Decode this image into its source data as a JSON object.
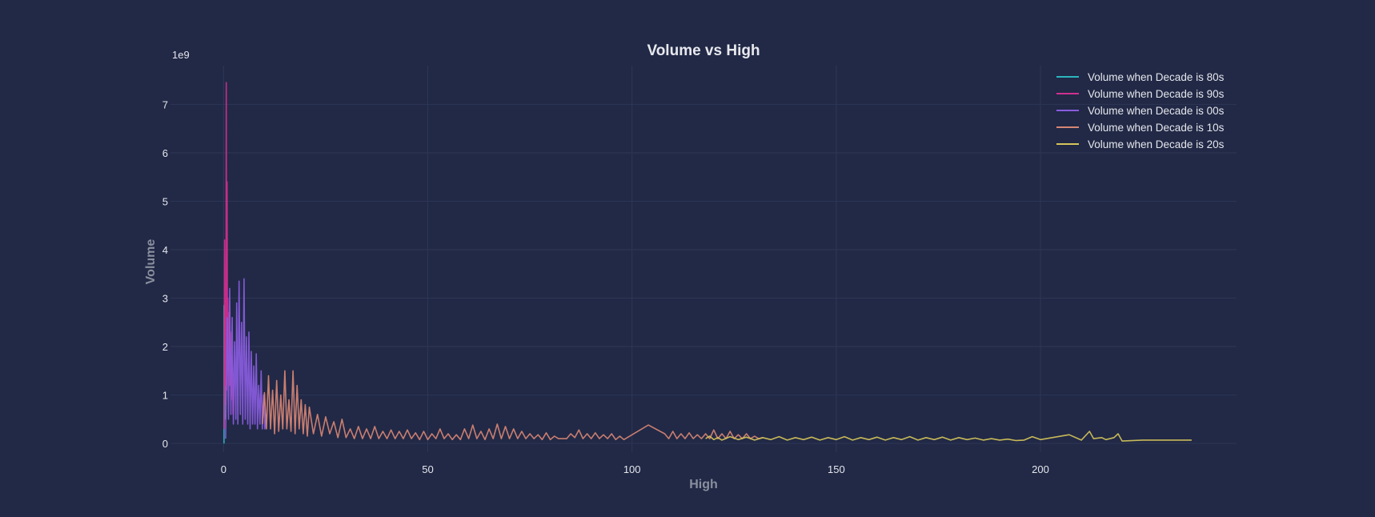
{
  "chart_data": {
    "type": "line",
    "title": "Volume vs High",
    "xlabel": "High",
    "ylabel": "Volume",
    "y_offset_label": "1e9",
    "xlim": [
      -13,
      248
    ],
    "ylim": [
      -0.18,
      7.8
    ],
    "x_ticks": [
      0,
      50,
      100,
      150,
      200
    ],
    "y_ticks": [
      0,
      1,
      2,
      3,
      4,
      5,
      6,
      7
    ],
    "grid": true,
    "legend_position": "top-right",
    "series": [
      {
        "name": "Volume when Decade is 80s",
        "color": "#2bb5bd",
        "points": [
          [
            0.1,
            0.0
          ],
          [
            0.12,
            2.85
          ],
          [
            0.14,
            0.4
          ],
          [
            0.16,
            2.2
          ],
          [
            0.18,
            0.6
          ],
          [
            0.2,
            1.9
          ],
          [
            0.22,
            0.8
          ],
          [
            0.25,
            2.6
          ],
          [
            0.28,
            0.5
          ],
          [
            0.3,
            1.4
          ]
        ]
      },
      {
        "name": "Volume when Decade is 90s",
        "color": "#d12f8f",
        "points": [
          [
            0.15,
            0.3
          ],
          [
            0.25,
            4.2
          ],
          [
            0.35,
            1.2
          ],
          [
            0.45,
            3.3
          ],
          [
            0.55,
            0.8
          ],
          [
            0.65,
            7.45
          ],
          [
            0.75,
            1.1
          ],
          [
            0.85,
            5.4
          ],
          [
            0.95,
            2.0
          ],
          [
            1.05,
            3.0
          ],
          [
            1.15,
            1.5
          ],
          [
            1.3,
            2.7
          ],
          [
            1.5,
            1.2
          ],
          [
            1.7,
            2.3
          ],
          [
            1.9,
            0.9
          ],
          [
            2.1,
            1.8
          ],
          [
            2.3,
            0.6
          ]
        ]
      },
      {
        "name": "Volume when Decade is 00s",
        "color": "#8a5ce0",
        "points": [
          [
            0.5,
            0.1
          ],
          [
            0.9,
            2.6
          ],
          [
            1.2,
            0.5
          ],
          [
            1.5,
            3.2
          ],
          [
            1.8,
            0.6
          ],
          [
            2.1,
            2.6
          ],
          [
            2.4,
            0.4
          ],
          [
            2.7,
            2.1
          ],
          [
            3.0,
            0.5
          ],
          [
            3.2,
            2.9
          ],
          [
            3.5,
            0.4
          ],
          [
            3.8,
            3.35
          ],
          [
            4.1,
            0.6
          ],
          [
            4.4,
            2.5
          ],
          [
            4.7,
            0.4
          ],
          [
            5.0,
            3.4
          ],
          [
            5.3,
            0.5
          ],
          [
            5.6,
            2.2
          ],
          [
            5.9,
            0.4
          ],
          [
            6.2,
            2.3
          ],
          [
            6.5,
            0.3
          ],
          [
            6.8,
            1.9
          ],
          [
            7.1,
            0.4
          ],
          [
            7.4,
            1.6
          ],
          [
            7.7,
            0.4
          ],
          [
            8.0,
            1.85
          ],
          [
            8.3,
            0.3
          ],
          [
            8.6,
            1.2
          ],
          [
            8.9,
            0.4
          ],
          [
            9.2,
            1.5
          ],
          [
            9.5,
            0.3
          ],
          [
            9.8,
            1.0
          ],
          [
            10.1,
            0.3
          ],
          [
            10.5,
            0.6
          ]
        ]
      },
      {
        "name": "Volume when Decade is 10s",
        "color": "#d88574",
        "points": [
          [
            9.5,
            0.4
          ],
          [
            10,
            1.05
          ],
          [
            10.5,
            0.3
          ],
          [
            11,
            1.4
          ],
          [
            11.5,
            0.3
          ],
          [
            12,
            1.1
          ],
          [
            12.5,
            0.2
          ],
          [
            13,
            1.3
          ],
          [
            13.5,
            0.25
          ],
          [
            14,
            1.0
          ],
          [
            14.5,
            0.3
          ],
          [
            15,
            1.5
          ],
          [
            15.5,
            0.3
          ],
          [
            16,
            0.9
          ],
          [
            16.5,
            0.25
          ],
          [
            17,
            1.5
          ],
          [
            17.5,
            0.2
          ],
          [
            18,
            1.2
          ],
          [
            18.5,
            0.3
          ],
          [
            19,
            0.9
          ],
          [
            19.5,
            0.2
          ],
          [
            20,
            0.8
          ],
          [
            20.5,
            0.15
          ],
          [
            21,
            0.75
          ],
          [
            22,
            0.2
          ],
          [
            23,
            0.6
          ],
          [
            24,
            0.15
          ],
          [
            25,
            0.55
          ],
          [
            26,
            0.2
          ],
          [
            27,
            0.45
          ],
          [
            28,
            0.12
          ],
          [
            29,
            0.5
          ],
          [
            30,
            0.12
          ],
          [
            31,
            0.3
          ],
          [
            32,
            0.1
          ],
          [
            33,
            0.35
          ],
          [
            34,
            0.1
          ],
          [
            35,
            0.3
          ],
          [
            36,
            0.1
          ],
          [
            37,
            0.35
          ],
          [
            38,
            0.1
          ],
          [
            39,
            0.25
          ],
          [
            40,
            0.1
          ],
          [
            41,
            0.28
          ],
          [
            42,
            0.1
          ],
          [
            43,
            0.25
          ],
          [
            44,
            0.1
          ],
          [
            45,
            0.28
          ],
          [
            46,
            0.1
          ],
          [
            47,
            0.22
          ],
          [
            48,
            0.08
          ],
          [
            49,
            0.25
          ],
          [
            50,
            0.08
          ],
          [
            51,
            0.2
          ],
          [
            52,
            0.1
          ],
          [
            53,
            0.3
          ],
          [
            54,
            0.1
          ],
          [
            55,
            0.2
          ],
          [
            56,
            0.08
          ],
          [
            57,
            0.18
          ],
          [
            58,
            0.08
          ],
          [
            59,
            0.3
          ],
          [
            60,
            0.1
          ],
          [
            61,
            0.38
          ],
          [
            62,
            0.1
          ],
          [
            63,
            0.25
          ],
          [
            64,
            0.08
          ],
          [
            65,
            0.3
          ],
          [
            66,
            0.1
          ],
          [
            67,
            0.4
          ],
          [
            68,
            0.1
          ],
          [
            69,
            0.35
          ],
          [
            70,
            0.1
          ],
          [
            71,
            0.3
          ],
          [
            72,
            0.1
          ],
          [
            73,
            0.25
          ],
          [
            74,
            0.1
          ],
          [
            75,
            0.2
          ],
          [
            76,
            0.1
          ],
          [
            77,
            0.18
          ],
          [
            78,
            0.08
          ],
          [
            79,
            0.22
          ],
          [
            80,
            0.08
          ],
          [
            81,
            0.15
          ],
          [
            82,
            0.1
          ],
          [
            84,
            0.1
          ],
          [
            85,
            0.2
          ],
          [
            86,
            0.12
          ],
          [
            87,
            0.28
          ],
          [
            88,
            0.1
          ],
          [
            89,
            0.2
          ],
          [
            90,
            0.1
          ],
          [
            91,
            0.22
          ],
          [
            92,
            0.1
          ],
          [
            93,
            0.18
          ],
          [
            94,
            0.1
          ],
          [
            95,
            0.2
          ],
          [
            96,
            0.08
          ],
          [
            97,
            0.15
          ],
          [
            98,
            0.08
          ],
          [
            104,
            0.38
          ],
          [
            108,
            0.2
          ],
          [
            109,
            0.1
          ],
          [
            110,
            0.25
          ],
          [
            111,
            0.1
          ],
          [
            112,
            0.2
          ],
          [
            113,
            0.1
          ],
          [
            114,
            0.22
          ],
          [
            115,
            0.1
          ],
          [
            116,
            0.18
          ],
          [
            117,
            0.1
          ],
          [
            118,
            0.2
          ],
          [
            119,
            0.1
          ],
          [
            120,
            0.28
          ],
          [
            121,
            0.1
          ],
          [
            122,
            0.2
          ],
          [
            123,
            0.1
          ],
          [
            124,
            0.25
          ],
          [
            125,
            0.1
          ],
          [
            126,
            0.18
          ],
          [
            127,
            0.1
          ],
          [
            128,
            0.2
          ],
          [
            129,
            0.1
          ],
          [
            130,
            0.15
          ],
          [
            131,
            0.1
          ],
          [
            132,
            0.12
          ]
        ]
      },
      {
        "name": "Volume when Decade is 20s",
        "color": "#d6c45a",
        "points": [
          [
            118,
            0.1
          ],
          [
            119,
            0.15
          ],
          [
            120,
            0.08
          ],
          [
            121,
            0.12
          ],
          [
            122,
            0.07
          ],
          [
            124,
            0.14
          ],
          [
            126,
            0.08
          ],
          [
            128,
            0.13
          ],
          [
            130,
            0.07
          ],
          [
            132,
            0.12
          ],
          [
            134,
            0.08
          ],
          [
            136,
            0.14
          ],
          [
            138,
            0.07
          ],
          [
            140,
            0.12
          ],
          [
            142,
            0.08
          ],
          [
            144,
            0.13
          ],
          [
            146,
            0.07
          ],
          [
            148,
            0.12
          ],
          [
            150,
            0.08
          ],
          [
            152,
            0.14
          ],
          [
            154,
            0.07
          ],
          [
            156,
            0.12
          ],
          [
            158,
            0.08
          ],
          [
            160,
            0.13
          ],
          [
            162,
            0.07
          ],
          [
            164,
            0.12
          ],
          [
            166,
            0.08
          ],
          [
            168,
            0.14
          ],
          [
            170,
            0.07
          ],
          [
            172,
            0.12
          ],
          [
            174,
            0.08
          ],
          [
            176,
            0.13
          ],
          [
            178,
            0.07
          ],
          [
            180,
            0.12
          ],
          [
            182,
            0.08
          ],
          [
            184,
            0.11
          ],
          [
            186,
            0.07
          ],
          [
            188,
            0.1
          ],
          [
            190,
            0.07
          ],
          [
            192,
            0.09
          ],
          [
            194,
            0.06
          ],
          [
            196,
            0.07
          ],
          [
            198,
            0.14
          ],
          [
            200,
            0.08
          ],
          [
            207,
            0.18
          ],
          [
            210,
            0.07
          ],
          [
            212,
            0.25
          ],
          [
            213,
            0.1
          ],
          [
            215,
            0.12
          ],
          [
            216,
            0.08
          ],
          [
            218,
            0.12
          ],
          [
            219,
            0.2
          ],
          [
            220,
            0.05
          ],
          [
            225,
            0.07
          ],
          [
            230,
            0.07
          ],
          [
            237,
            0.07
          ]
        ]
      }
    ]
  }
}
